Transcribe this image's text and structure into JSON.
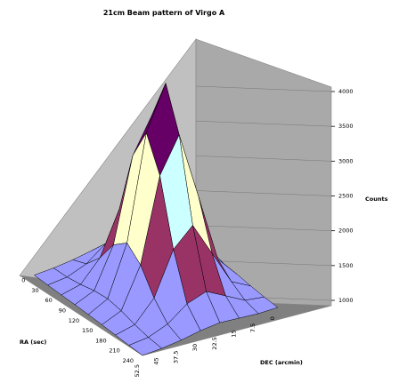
{
  "chart_data": {
    "type": "surface",
    "title": "21cm Beam pattern of Virgo A",
    "zlabel": "Counts",
    "ra_label": "RA (sec)",
    "dec_label": "DEC (arcmin)",
    "zlim": [
      1000,
      4000
    ],
    "z_ticks": [
      "1000",
      "1500",
      "2000",
      "2500",
      "3000",
      "3500",
      "4000"
    ],
    "ra_ticks": [
      "0",
      "30",
      "60",
      "90",
      "120",
      "150",
      "180",
      "210",
      "240"
    ],
    "dec_ticks": [
      "0",
      "7.5",
      "15",
      "22.5",
      "30",
      "37.5",
      "45",
      "52.5"
    ],
    "band_colors": [
      "#9999ff",
      "#993366",
      "#ffffcc",
      "#ccffff",
      "#660066",
      "#ff8080"
    ],
    "grid": true
  }
}
